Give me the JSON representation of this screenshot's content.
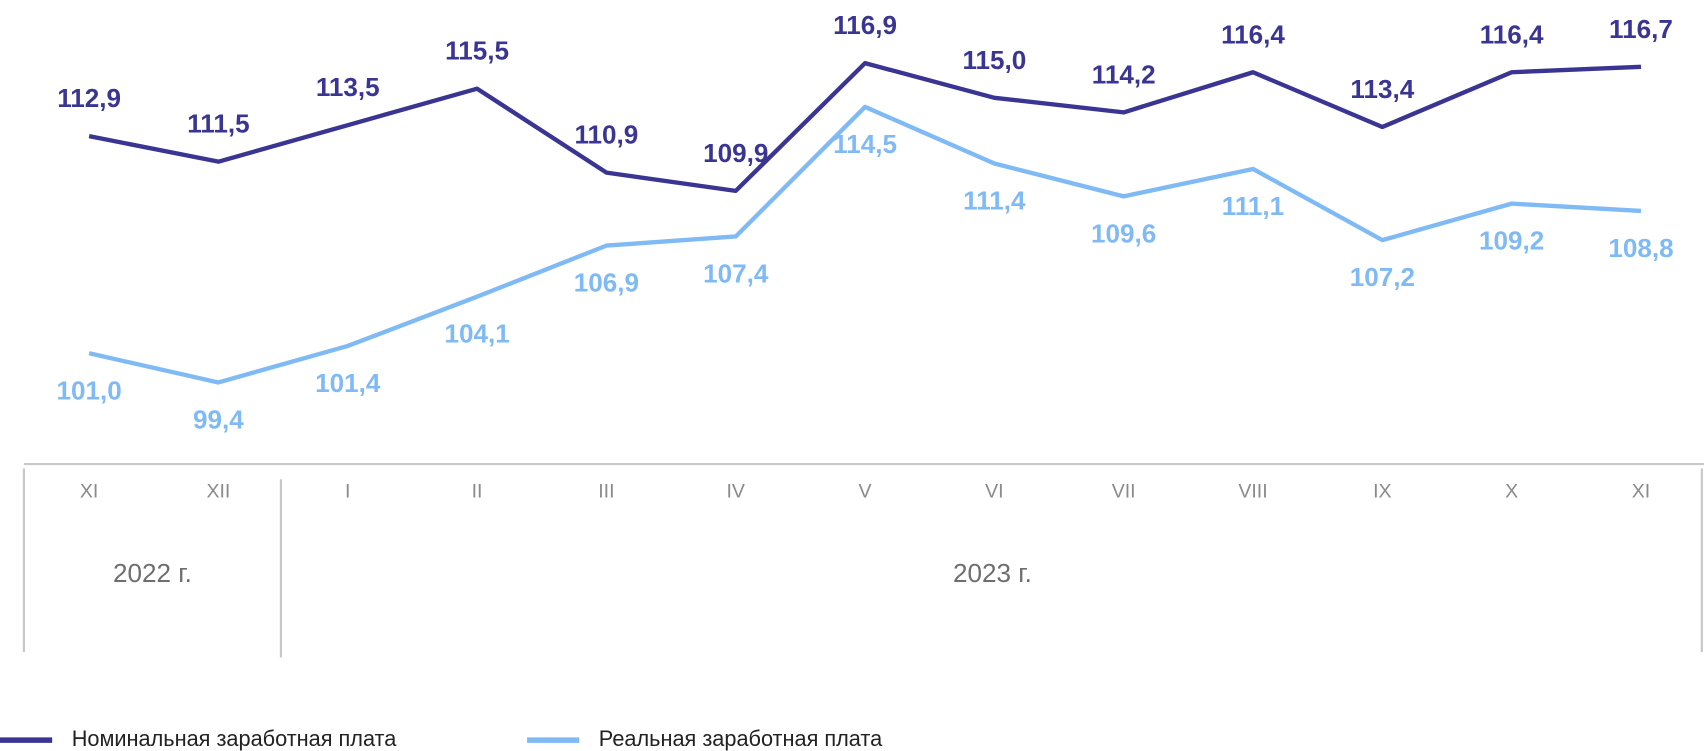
{
  "chart_data": {
    "type": "line",
    "categories": [
      "XI",
      "XII",
      "I",
      "II",
      "III",
      "IV",
      "V",
      "VI",
      "VII",
      "VIII",
      "IX",
      "X",
      "XI"
    ],
    "groups": [
      {
        "label": "2022 г.",
        "count": 2
      },
      {
        "label": "2023 г.",
        "count": 11
      }
    ],
    "series": [
      {
        "name": "Номинальная заработная плата",
        "color": "#3a3592",
        "values": [
          112.9,
          111.5,
          113.5,
          115.5,
          110.9,
          109.9,
          116.9,
          115.0,
          114.2,
          116.4,
          113.4,
          116.4,
          116.7
        ],
        "value_labels": [
          "112,9",
          "111,5",
          "113,5",
          "115,5",
          "110,9",
          "109,9",
          "116,9",
          "115,0",
          "114,2",
          "116,4",
          "113,4",
          "116,4",
          "116,7"
        ]
      },
      {
        "name": "Реальная заработная плата",
        "color": "#7fbaf5",
        "values": [
          101.0,
          99.4,
          101.4,
          104.1,
          106.9,
          107.4,
          114.5,
          111.4,
          109.6,
          111.1,
          107.2,
          109.2,
          108.8
        ],
        "value_labels": [
          "101,0",
          "99,4",
          "101,4",
          "104,1",
          "106,9",
          "107,4",
          "114,5",
          "111,4",
          "109,6",
          "111,1",
          "107,2",
          "109,2",
          "108,8"
        ]
      }
    ],
    "ylim": [
      96,
      120
    ],
    "legend": "bottom-left"
  }
}
